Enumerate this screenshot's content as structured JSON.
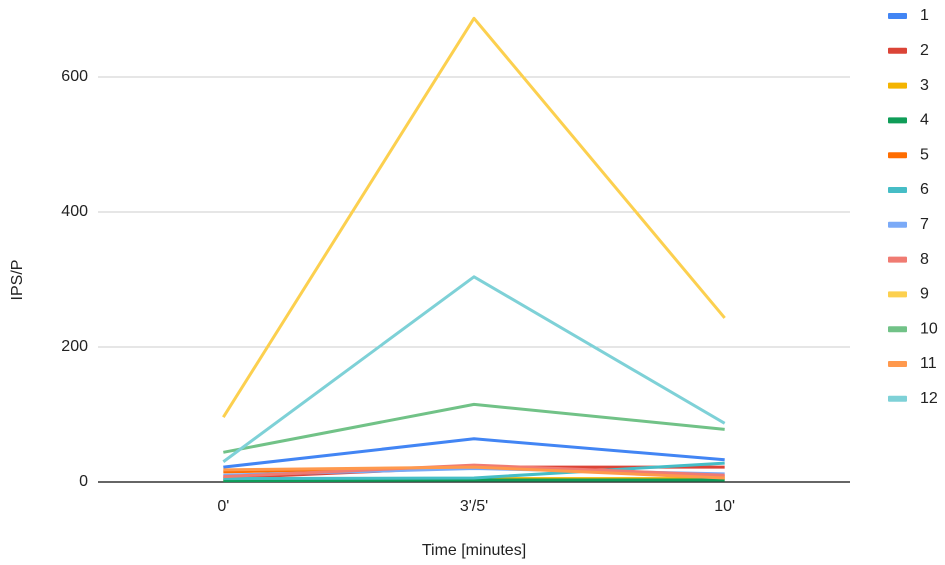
{
  "chart_data": {
    "type": "line",
    "x_label": "Time [minutes]",
    "y_label": "IPS/P",
    "categories": [
      "0'",
      "3'/5'",
      "10'"
    ],
    "ylim": [
      0,
      700
    ],
    "yticks": [
      0,
      200,
      400,
      600
    ],
    "grid": true,
    "legend": "right",
    "series": [
      {
        "name": "1",
        "color": "#4285f4",
        "values": [
          22,
          64,
          33
        ]
      },
      {
        "name": "2",
        "color": "#db4437",
        "values": [
          6,
          22,
          22
        ]
      },
      {
        "name": "3",
        "color": "#f4b400",
        "values": [
          3,
          5,
          5
        ]
      },
      {
        "name": "4",
        "color": "#0f9d58",
        "values": [
          2,
          3,
          3
        ]
      },
      {
        "name": "5",
        "color": "#ff6d00",
        "values": [
          15,
          22,
          8
        ]
      },
      {
        "name": "6",
        "color": "#46bdc6",
        "values": [
          5,
          6,
          28
        ]
      },
      {
        "name": "7",
        "color": "#7baaf7",
        "values": [
          10,
          20,
          12
        ]
      },
      {
        "name": "8",
        "color": "#f07b72",
        "values": [
          8,
          25,
          10
        ]
      },
      {
        "name": "9",
        "color": "#fcd04f",
        "values": [
          96,
          687,
          243
        ]
      },
      {
        "name": "10",
        "color": "#71c287",
        "values": [
          44,
          115,
          78
        ]
      },
      {
        "name": "11",
        "color": "#ff994d",
        "values": [
          18,
          22,
          6
        ]
      },
      {
        "name": "12",
        "color": "#7ed1d7",
        "values": [
          30,
          304,
          87
        ]
      }
    ]
  }
}
